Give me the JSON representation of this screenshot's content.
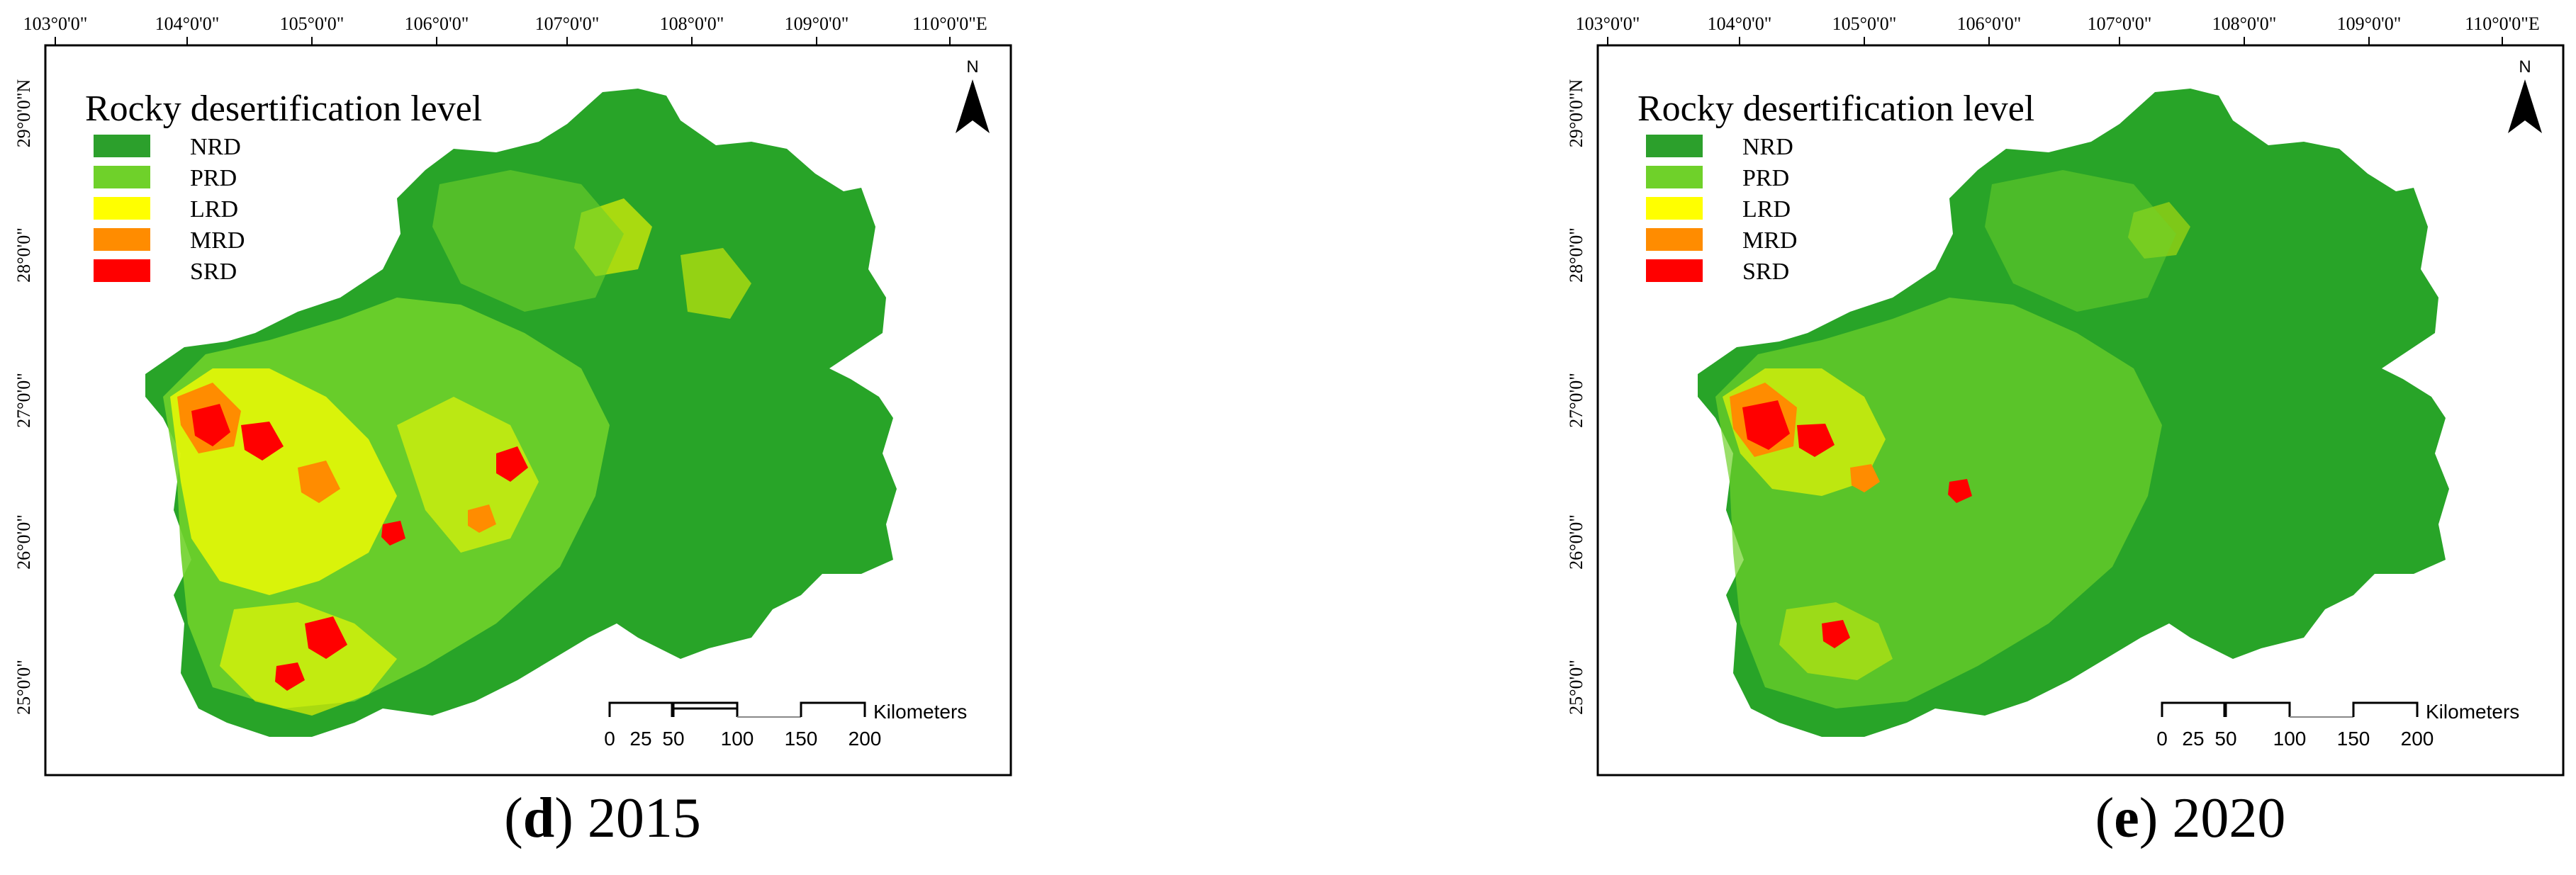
{
  "legend": {
    "title": "Rocky desertification level",
    "items": [
      {
        "label": "NRD",
        "color": "#2ca02c"
      },
      {
        "label": "PRD",
        "color": "#6fd12a"
      },
      {
        "label": "LRD",
        "color": "#ffff00"
      },
      {
        "label": "MRD",
        "color": "#ff8c00"
      },
      {
        "label": "SRD",
        "color": "#ff0000"
      }
    ]
  },
  "longitude_ticks": [
    "103°0'0\"",
    "104°0'0\"",
    "105°0'0\"",
    "106°0'0\"",
    "107°0'0\"",
    "108°0'0\"",
    "109°0'0\"",
    "110°0'0\"E"
  ],
  "latitude_ticks": [
    "29°0'0\"N",
    "28°0'0\"",
    "27°0'0\"",
    "26°0'0\"",
    "25°0'0\""
  ],
  "north_arrow": "N",
  "scale_bar": {
    "labels": [
      "0",
      "25",
      "50",
      "100",
      "150",
      "200"
    ],
    "unit": "Kilometers"
  },
  "panels": [
    {
      "letter": "d",
      "year": "2015"
    },
    {
      "letter": "e",
      "year": "2020"
    }
  ]
}
